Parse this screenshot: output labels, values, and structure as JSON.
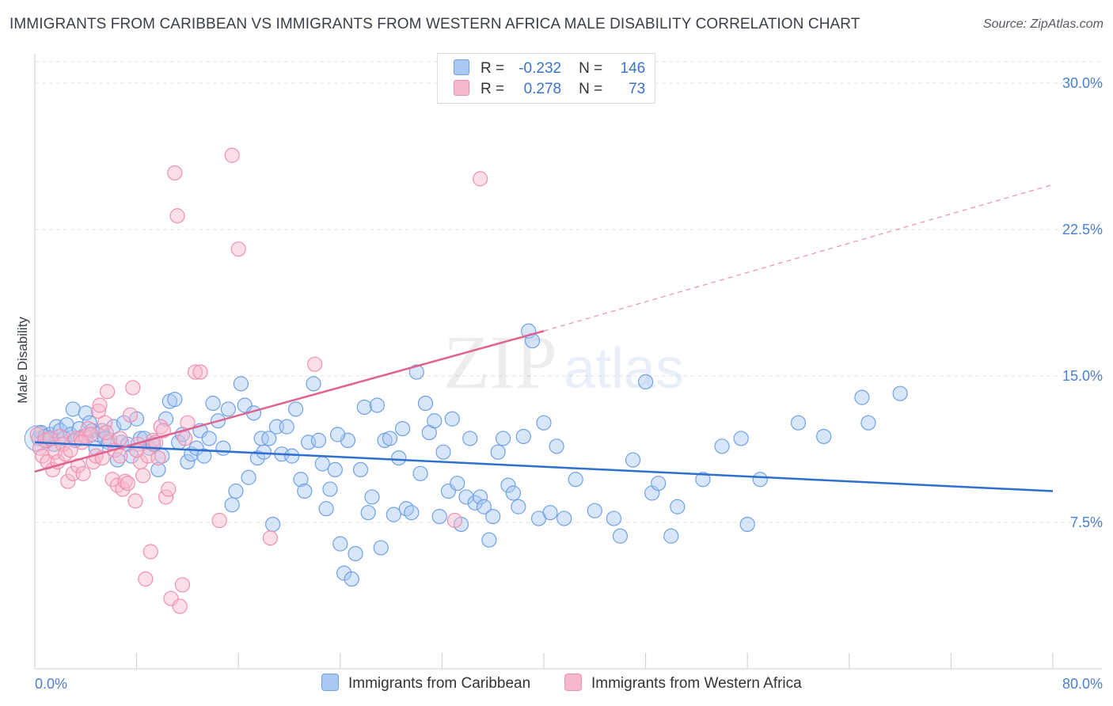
{
  "title": "IMMIGRANTS FROM CARIBBEAN VS IMMIGRANTS FROM WESTERN AFRICA MALE DISABILITY CORRELATION CHART",
  "source": "Source: ZipAtlas.com",
  "watermark": {
    "zip": "ZIP",
    "atlas": "atlas"
  },
  "legend": {
    "rows": [
      {
        "r_label": "R =",
        "r_value": "-0.232",
        "n_label": "N =",
        "n_value": "146",
        "color": "#a9c8f2"
      },
      {
        "r_label": "R =",
        "r_value": "0.278",
        "n_label": "N =",
        "n_value": "73",
        "color": "#f7b8cb"
      }
    ]
  },
  "chart_data": {
    "type": "scatter",
    "title": "IMMIGRANTS FROM CARIBBEAN VS IMMIGRANTS FROM WESTERN AFRICA MALE DISABILITY CORRELATION CHART",
    "xlabel": "",
    "ylabel": "Male Disability",
    "xlim": [
      0,
      80
    ],
    "ylim": [
      0,
      31.5
    ],
    "x_tick_labels": [
      {
        "value": 0,
        "label": "0.0%"
      },
      {
        "value": 80,
        "label": "80.0%"
      }
    ],
    "y_ticks": [
      {
        "value": 7.5,
        "label": "7.5%"
      },
      {
        "value": 15.0,
        "label": "15.0%"
      },
      {
        "value": 22.5,
        "label": "22.5%"
      },
      {
        "value": 30.0,
        "label": "30.0%"
      }
    ],
    "grid": true,
    "legend_position": "top-center",
    "series": [
      {
        "name": "Immigrants from Caribbean",
        "color": "#6fa0e6",
        "fill": "#a9c8f2",
        "trend": {
          "x0": 0,
          "y0": 11.6,
          "x1": 80,
          "y1": 9.1,
          "style": "solid",
          "color": "#2f6fd0"
        },
        "points": [
          [
            0.3,
            11.8
          ],
          [
            0.5,
            12.1
          ],
          [
            0.8,
            11.9
          ],
          [
            1.0,
            11.7
          ],
          [
            1.2,
            12.0
          ],
          [
            1.5,
            11.5
          ],
          [
            1.7,
            12.4
          ],
          [
            2.0,
            12.2
          ],
          [
            2.3,
            11.8
          ],
          [
            2.5,
            12.5
          ],
          [
            2.8,
            12.0
          ],
          [
            3.0,
            13.3
          ],
          [
            3.2,
            11.7
          ],
          [
            3.5,
            12.3
          ],
          [
            3.8,
            11.9
          ],
          [
            4.0,
            13.1
          ],
          [
            4.3,
            12.6
          ],
          [
            4.5,
            12.2
          ],
          [
            4.8,
            11.3
          ],
          [
            5.0,
            12.0
          ],
          [
            5.3,
            12.2
          ],
          [
            5.5,
            11.8
          ],
          [
            5.8,
            11.6
          ],
          [
            6.2,
            12.4
          ],
          [
            6.5,
            10.7
          ],
          [
            6.8,
            11.6
          ],
          [
            7.0,
            12.6
          ],
          [
            7.3,
            11.5
          ],
          [
            7.6,
            10.9
          ],
          [
            8.0,
            12.8
          ],
          [
            8.3,
            11.8
          ],
          [
            8.6,
            11.8
          ],
          [
            9.0,
            11.3
          ],
          [
            9.3,
            11.5
          ],
          [
            9.7,
            10.2
          ],
          [
            10.0,
            10.9
          ],
          [
            10.3,
            12.8
          ],
          [
            10.6,
            13.7
          ],
          [
            11.0,
            13.8
          ],
          [
            11.3,
            11.6
          ],
          [
            11.6,
            12.0
          ],
          [
            12.0,
            10.6
          ],
          [
            12.3,
            11.0
          ],
          [
            12.7,
            11.3
          ],
          [
            13.0,
            12.2
          ],
          [
            13.3,
            10.9
          ],
          [
            13.7,
            11.8
          ],
          [
            14.0,
            13.6
          ],
          [
            14.4,
            12.7
          ],
          [
            14.8,
            11.3
          ],
          [
            15.2,
            13.3
          ],
          [
            15.5,
            8.4
          ],
          [
            15.8,
            9.1
          ],
          [
            16.2,
            14.6
          ],
          [
            16.5,
            13.5
          ],
          [
            16.8,
            9.8
          ],
          [
            17.2,
            13.1
          ],
          [
            17.5,
            10.8
          ],
          [
            17.8,
            11.8
          ],
          [
            18.0,
            11.1
          ],
          [
            18.4,
            11.8
          ],
          [
            18.7,
            7.4
          ],
          [
            19.0,
            12.4
          ],
          [
            19.4,
            11.0
          ],
          [
            19.8,
            12.4
          ],
          [
            20.2,
            10.9
          ],
          [
            20.5,
            13.3
          ],
          [
            20.9,
            9.7
          ],
          [
            21.2,
            9.1
          ],
          [
            21.5,
            11.6
          ],
          [
            21.9,
            14.6
          ],
          [
            22.3,
            11.7
          ],
          [
            22.6,
            10.5
          ],
          [
            22.9,
            8.2
          ],
          [
            23.2,
            9.2
          ],
          [
            23.6,
            10.2
          ],
          [
            24.0,
            6.4
          ],
          [
            24.3,
            4.9
          ],
          [
            24.6,
            11.7
          ],
          [
            24.9,
            4.6
          ],
          [
            25.2,
            5.9
          ],
          [
            25.6,
            10.2
          ],
          [
            25.9,
            13.4
          ],
          [
            26.2,
            8.0
          ],
          [
            26.5,
            8.8
          ],
          [
            26.9,
            13.5
          ],
          [
            27.2,
            6.2
          ],
          [
            27.5,
            11.7
          ],
          [
            27.9,
            11.8
          ],
          [
            28.2,
            7.9
          ],
          [
            28.6,
            10.8
          ],
          [
            28.9,
            12.3
          ],
          [
            29.2,
            8.2
          ],
          [
            29.6,
            8.0
          ],
          [
            30.0,
            15.2
          ],
          [
            30.3,
            10.0
          ],
          [
            30.7,
            13.6
          ],
          [
            31.0,
            12.1
          ],
          [
            31.4,
            12.7
          ],
          [
            31.8,
            7.8
          ],
          [
            32.1,
            11.1
          ],
          [
            32.5,
            9.1
          ],
          [
            32.8,
            12.8
          ],
          [
            33.2,
            9.5
          ],
          [
            33.5,
            7.4
          ],
          [
            33.9,
            8.8
          ],
          [
            34.2,
            11.8
          ],
          [
            34.6,
            8.5
          ],
          [
            35.0,
            8.8
          ],
          [
            35.3,
            8.3
          ],
          [
            35.7,
            6.6
          ],
          [
            36.0,
            7.8
          ],
          [
            36.4,
            11.1
          ],
          [
            36.8,
            11.8
          ],
          [
            37.2,
            9.4
          ],
          [
            37.6,
            9.0
          ],
          [
            38.0,
            8.3
          ],
          [
            38.4,
            11.9
          ],
          [
            38.8,
            17.3
          ],
          [
            39.1,
            16.8
          ],
          [
            39.6,
            7.7
          ],
          [
            40.0,
            12.6
          ],
          [
            40.5,
            8.0
          ],
          [
            41.0,
            11.4
          ],
          [
            41.6,
            7.7
          ],
          [
            42.5,
            9.7
          ],
          [
            44.0,
            8.1
          ],
          [
            45.5,
            7.7
          ],
          [
            46.0,
            6.8
          ],
          [
            47.0,
            10.7
          ],
          [
            48.0,
            14.7
          ],
          [
            48.5,
            9.0
          ],
          [
            49.0,
            9.5
          ],
          [
            50.0,
            6.8
          ],
          [
            50.5,
            8.3
          ],
          [
            52.5,
            9.7
          ],
          [
            54.0,
            11.4
          ],
          [
            55.5,
            11.8
          ],
          [
            56.0,
            7.4
          ],
          [
            57.0,
            9.7
          ],
          [
            60.0,
            12.6
          ],
          [
            62.0,
            11.9
          ],
          [
            65.0,
            13.9
          ],
          [
            65.5,
            12.6
          ],
          [
            68.0,
            14.1
          ],
          [
            23.8,
            12.0
          ]
        ]
      },
      {
        "name": "Immigrants from Western Africa",
        "color": "#ef8fb0",
        "fill": "#f7b8cb",
        "trend": {
          "x0": 0,
          "y0": 10.1,
          "x1": 40,
          "y1": 17.3,
          "x2": 80,
          "y2": 24.8,
          "style": "solid-then-dashed",
          "color": "#e0628f"
        },
        "points": [
          [
            0.2,
            12.0
          ],
          [
            0.4,
            11.3
          ],
          [
            0.6,
            10.9
          ],
          [
            0.8,
            11.7
          ],
          [
            1.0,
            10.6
          ],
          [
            1.2,
            11.8
          ],
          [
            1.4,
            10.2
          ],
          [
            1.6,
            11.1
          ],
          [
            1.8,
            10.6
          ],
          [
            2.0,
            11.9
          ],
          [
            2.2,
            11.5
          ],
          [
            2.4,
            11.0
          ],
          [
            2.6,
            9.6
          ],
          [
            2.8,
            11.2
          ],
          [
            3.0,
            10.0
          ],
          [
            3.2,
            11.8
          ],
          [
            3.4,
            10.4
          ],
          [
            3.6,
            11.8
          ],
          [
            3.8,
            10.0
          ],
          [
            4.0,
            11.9
          ],
          [
            4.2,
            12.3
          ],
          [
            4.4,
            12.0
          ],
          [
            4.6,
            10.6
          ],
          [
            4.8,
            10.9
          ],
          [
            5.0,
            13.2
          ],
          [
            5.1,
            13.5
          ],
          [
            5.3,
            10.8
          ],
          [
            5.5,
            12.6
          ],
          [
            5.7,
            14.2
          ],
          [
            5.9,
            11.7
          ],
          [
            6.1,
            9.7
          ],
          [
            6.3,
            11.2
          ],
          [
            6.5,
            9.4
          ],
          [
            6.7,
            10.9
          ],
          [
            6.9,
            9.2
          ],
          [
            7.1,
            9.6
          ],
          [
            7.3,
            9.5
          ],
          [
            7.5,
            13.0
          ],
          [
            7.7,
            14.4
          ],
          [
            7.9,
            8.6
          ],
          [
            8.1,
            11.5
          ],
          [
            8.3,
            10.6
          ],
          [
            8.5,
            9.9
          ],
          [
            8.7,
            4.6
          ],
          [
            8.9,
            10.9
          ],
          [
            9.1,
            6.0
          ],
          [
            9.3,
            11.7
          ],
          [
            9.5,
            11.6
          ],
          [
            9.7,
            10.8
          ],
          [
            9.9,
            12.4
          ],
          [
            10.1,
            12.2
          ],
          [
            10.3,
            8.8
          ],
          [
            10.5,
            9.2
          ],
          [
            10.7,
            3.6
          ],
          [
            11.0,
            25.4
          ],
          [
            11.2,
            23.2
          ],
          [
            11.4,
            3.2
          ],
          [
            11.6,
            4.3
          ],
          [
            11.8,
            11.8
          ],
          [
            12.0,
            12.6
          ],
          [
            12.6,
            15.2
          ],
          [
            13.0,
            15.2
          ],
          [
            14.5,
            7.6
          ],
          [
            15.5,
            26.3
          ],
          [
            16.0,
            21.5
          ],
          [
            18.5,
            6.7
          ],
          [
            22.0,
            15.6
          ],
          [
            33.0,
            7.6
          ],
          [
            35.0,
            25.1
          ],
          [
            8.0,
            11.2
          ],
          [
            6.7,
            11.8
          ],
          [
            3.7,
            11.6
          ],
          [
            5.6,
            12.1
          ]
        ]
      }
    ]
  },
  "bottom_legend": {
    "items": [
      {
        "label": "Immigrants from Caribbean",
        "color": "#a9c8f2",
        "border": "#6fa0e6"
      },
      {
        "label": "Immigrants from Western Africa",
        "color": "#f7b8cb",
        "border": "#ef8fb0"
      }
    ]
  }
}
